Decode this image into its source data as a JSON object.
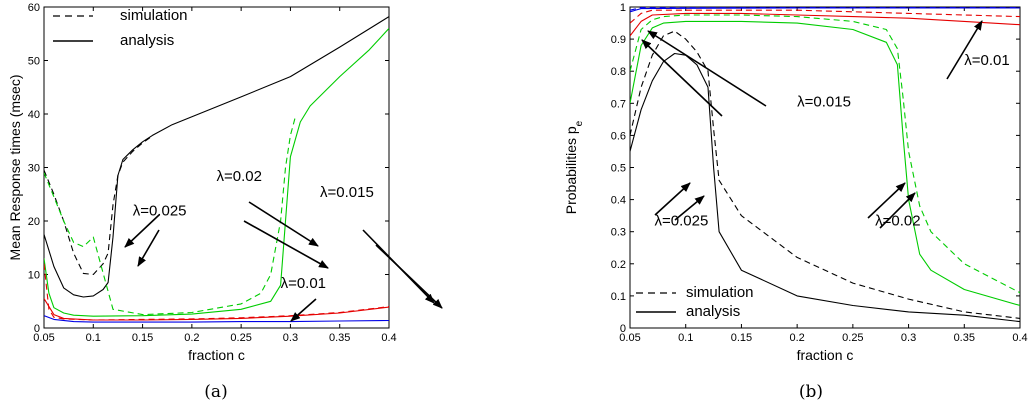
{
  "colors": {
    "black": "#000000",
    "green": "#00cc00",
    "red": "#e60000",
    "blue": "#0000e6"
  },
  "chart_data": [
    {
      "panel": "(a)",
      "type": "line",
      "xlabel": "fraction c",
      "ylabel": "Mean Response times (msec)",
      "xlim": [
        0.05,
        0.4
      ],
      "ylim": [
        0,
        60
      ],
      "xticks": [
        0.05,
        0.1,
        0.15,
        0.2,
        0.25,
        0.3,
        0.35,
        0.4
      ],
      "xtick_labels": [
        "0.05",
        "0.1",
        "0.15",
        "0.2",
        "0.25",
        "0.3",
        "0.35",
        "0.4"
      ],
      "yticks": [
        0,
        10,
        20,
        30,
        40,
        50,
        60
      ],
      "ytick_labels": [
        "0",
        "10",
        "20",
        "30",
        "40",
        "50",
        "60"
      ],
      "grid": false,
      "legend": {
        "placement": "top-left",
        "entries": [
          {
            "label": "simulation",
            "style": "dashed"
          },
          {
            "label": "analysis",
            "style": "solid"
          }
        ]
      },
      "series": [
        {
          "lambda": "λ=0.025",
          "color": "black",
          "style": "solid",
          "x": [
            0.05,
            0.06,
            0.07,
            0.08,
            0.09,
            0.1,
            0.11,
            0.115,
            0.12,
            0.125,
            0.13,
            0.14,
            0.15,
            0.16,
            0.18,
            0.2,
            0.25,
            0.3,
            0.35,
            0.4
          ],
          "y": [
            17.5,
            11.5,
            7.5,
            6.2,
            5.8,
            6.0,
            7.2,
            8.5,
            17.0,
            28.5,
            31.5,
            33.3,
            34.8,
            36.0,
            38.0,
            39.5,
            43.2,
            47.0,
            52.5,
            58.2
          ]
        },
        {
          "lambda": "λ=0.025",
          "color": "black",
          "style": "dashed",
          "x": [
            0.05,
            0.06,
            0.07,
            0.08,
            0.09,
            0.1,
            0.11,
            0.115,
            0.12,
            0.125,
            0.13,
            0.14,
            0.15,
            0.16
          ],
          "y": [
            29.5,
            25.0,
            20.0,
            14.0,
            10.2,
            10.0,
            12.0,
            14.0,
            23.0,
            28.5,
            31.0,
            33.0,
            34.6,
            35.9
          ]
        },
        {
          "lambda": "λ=0.02",
          "color": "green",
          "style": "solid",
          "x": [
            0.05,
            0.055,
            0.06,
            0.07,
            0.08,
            0.1,
            0.15,
            0.2,
            0.25,
            0.28,
            0.29,
            0.295,
            0.3,
            0.31,
            0.32,
            0.35,
            0.38,
            0.4
          ],
          "y": [
            13.0,
            6.5,
            3.8,
            2.8,
            2.4,
            2.2,
            2.3,
            2.6,
            3.5,
            5.0,
            8.0,
            20.0,
            32.0,
            38.5,
            41.5,
            47.0,
            52.0,
            56.0
          ]
        },
        {
          "lambda": "λ=0.02",
          "color": "green",
          "style": "dashed",
          "x": [
            0.05,
            0.06,
            0.07,
            0.08,
            0.09,
            0.1,
            0.12,
            0.15,
            0.2,
            0.25,
            0.27,
            0.28,
            0.29,
            0.295,
            0.3,
            0.305
          ],
          "y": [
            29.0,
            24.5,
            20.0,
            16.0,
            15.2,
            17.0,
            3.5,
            2.5,
            2.9,
            4.5,
            6.5,
            10.0,
            20.0,
            30.0,
            36.0,
            39.5
          ]
        },
        {
          "lambda": "λ=0.015",
          "color": "red",
          "style": "solid",
          "x": [
            0.05,
            0.06,
            0.07,
            0.1,
            0.15,
            0.2,
            0.25,
            0.3,
            0.35,
            0.4
          ],
          "y": [
            5.5,
            2.5,
            1.8,
            1.5,
            1.5,
            1.6,
            1.8,
            2.2,
            2.8,
            3.9
          ]
        },
        {
          "lambda": "λ=0.015",
          "color": "red",
          "style": "dashed",
          "x": [
            0.05,
            0.055,
            0.06,
            0.07,
            0.1,
            0.15,
            0.2,
            0.25,
            0.3,
            0.35,
            0.4
          ],
          "y": [
            12.0,
            3.5,
            2.0,
            1.7,
            1.5,
            1.6,
            1.7,
            1.9,
            2.3,
            2.9,
            4.0
          ]
        },
        {
          "lambda": "λ=0.01",
          "color": "blue",
          "style": "solid",
          "x": [
            0.05,
            0.06,
            0.08,
            0.1,
            0.15,
            0.2,
            0.25,
            0.3,
            0.35,
            0.4
          ],
          "y": [
            2.3,
            1.6,
            1.2,
            1.1,
            1.1,
            1.1,
            1.2,
            1.2,
            1.3,
            1.4
          ]
        }
      ],
      "annotations": [
        {
          "text": "λ=0.025",
          "x": 0.14,
          "y": 21.0
        },
        {
          "text": "λ=0.02",
          "x": 0.225,
          "y": 27.5
        },
        {
          "text": "λ=0.015",
          "x": 0.33,
          "y": 24.5
        },
        {
          "text": "λ=0.01",
          "x": 0.29,
          "y": 7.5
        }
      ]
    },
    {
      "panel": "(b)",
      "type": "line",
      "xlabel": "fraction c",
      "ylabel": "Probabilities p",
      "ylabel_sub": "e",
      "xlim": [
        0.05,
        0.4
      ],
      "ylim": [
        0,
        1
      ],
      "xticks": [
        0.05,
        0.1,
        0.15,
        0.2,
        0.25,
        0.3,
        0.35,
        0.4
      ],
      "xtick_labels": [
        "0.05",
        "0.1",
        "0.15",
        "0.2",
        "0.25",
        "0.3",
        "0.35",
        "0.4"
      ],
      "yticks": [
        0,
        0.1,
        0.2,
        0.3,
        0.4,
        0.5,
        0.6,
        0.7,
        0.8,
        0.9,
        1
      ],
      "ytick_labels": [
        "0",
        "0.1",
        "0.2",
        "0.3",
        "0.4",
        "0.5",
        "0.6",
        "0.7",
        "0.8",
        "0.9",
        "1"
      ],
      "grid": false,
      "legend": {
        "placement": "bottom-left",
        "entries": [
          {
            "label": "simulation",
            "style": "dashed"
          },
          {
            "label": "analysis",
            "style": "solid"
          }
        ]
      },
      "series": [
        {
          "lambda": "λ=0.025",
          "color": "black",
          "style": "solid",
          "x": [
            0.05,
            0.06,
            0.07,
            0.08,
            0.09,
            0.1,
            0.11,
            0.12,
            0.125,
            0.13,
            0.15,
            0.2,
            0.25,
            0.3,
            0.35,
            0.4
          ],
          "y": [
            0.55,
            0.68,
            0.77,
            0.83,
            0.855,
            0.85,
            0.82,
            0.75,
            0.5,
            0.3,
            0.18,
            0.1,
            0.07,
            0.05,
            0.04,
            0.02
          ]
        },
        {
          "lambda": "λ=0.025",
          "color": "black",
          "style": "dashed",
          "x": [
            0.05,
            0.06,
            0.07,
            0.08,
            0.09,
            0.1,
            0.11,
            0.12,
            0.125,
            0.13,
            0.15,
            0.2,
            0.25,
            0.3,
            0.35,
            0.4
          ],
          "y": [
            0.6,
            0.75,
            0.85,
            0.91,
            0.925,
            0.9,
            0.86,
            0.8,
            0.62,
            0.46,
            0.35,
            0.22,
            0.14,
            0.09,
            0.05,
            0.03
          ]
        },
        {
          "lambda": "λ=0.02",
          "color": "green",
          "style": "solid",
          "x": [
            0.05,
            0.06,
            0.07,
            0.08,
            0.1,
            0.15,
            0.2,
            0.25,
            0.28,
            0.29,
            0.295,
            0.3,
            0.31,
            0.32,
            0.35,
            0.4
          ],
          "y": [
            0.7,
            0.88,
            0.935,
            0.95,
            0.955,
            0.955,
            0.95,
            0.93,
            0.89,
            0.82,
            0.6,
            0.4,
            0.23,
            0.18,
            0.12,
            0.07
          ]
        },
        {
          "lambda": "λ=0.02",
          "color": "green",
          "style": "dashed",
          "x": [
            0.05,
            0.06,
            0.07,
            0.08,
            0.1,
            0.15,
            0.2,
            0.25,
            0.28,
            0.29,
            0.295,
            0.3,
            0.31,
            0.32,
            0.35,
            0.4
          ],
          "y": [
            0.8,
            0.93,
            0.96,
            0.97,
            0.975,
            0.975,
            0.97,
            0.955,
            0.93,
            0.87,
            0.72,
            0.55,
            0.38,
            0.3,
            0.2,
            0.11
          ]
        },
        {
          "lambda": "λ=0.015",
          "color": "red",
          "style": "solid",
          "x": [
            0.05,
            0.06,
            0.07,
            0.1,
            0.15,
            0.2,
            0.25,
            0.3,
            0.35,
            0.4
          ],
          "y": [
            0.91,
            0.955,
            0.975,
            0.98,
            0.98,
            0.975,
            0.97,
            0.965,
            0.955,
            0.945
          ]
        },
        {
          "lambda": "λ=0.015",
          "color": "red",
          "style": "dashed",
          "x": [
            0.05,
            0.06,
            0.07,
            0.1,
            0.15,
            0.2,
            0.25,
            0.3,
            0.35,
            0.4
          ],
          "y": [
            0.95,
            0.98,
            0.99,
            0.99,
            0.99,
            0.99,
            0.985,
            0.98,
            0.975,
            0.97
          ]
        },
        {
          "lambda": "λ=0.01",
          "color": "blue",
          "style": "solid",
          "x": [
            0.05,
            0.06,
            0.1,
            0.2,
            0.3,
            0.4
          ],
          "y": [
            0.985,
            0.995,
            0.996,
            0.997,
            0.997,
            0.997
          ]
        },
        {
          "lambda": "λ=0.01",
          "color": "blue",
          "style": "dashed",
          "x": [
            0.05,
            0.06,
            0.1,
            0.2,
            0.3,
            0.4
          ],
          "y": [
            0.99,
            0.998,
            0.999,
            0.999,
            0.999,
            0.999
          ]
        }
      ],
      "annotations": [
        {
          "text": "λ=0.015",
          "x": 0.2,
          "y": 0.69
        },
        {
          "text": "λ=0.01",
          "x": 0.35,
          "y": 0.82
        },
        {
          "text": "λ=0.025",
          "x": 0.072,
          "y": 0.32
        },
        {
          "text": "λ=0.02",
          "x": 0.27,
          "y": 0.32
        }
      ]
    }
  ]
}
